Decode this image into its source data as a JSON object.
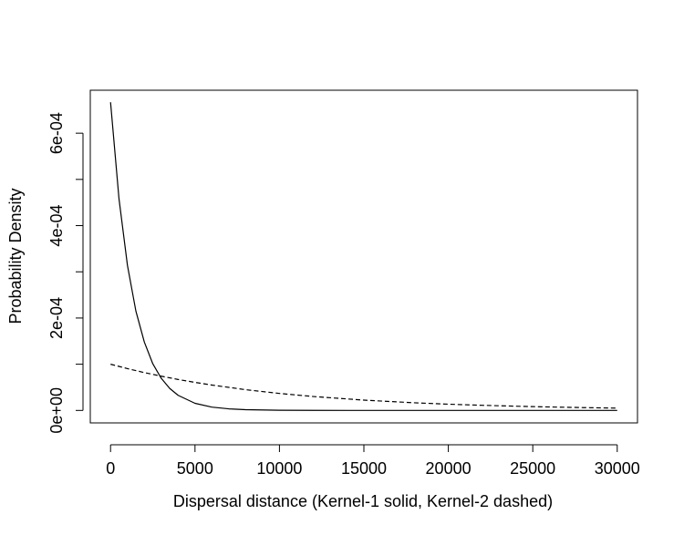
{
  "chart_data": {
    "type": "line",
    "title": "",
    "xlabel": "Dispersal distance (Kernel-1 solid, Kernel-2 dashed)",
    "ylabel": "Probability Density",
    "xlim": [
      -1200,
      31200
    ],
    "ylim": [
      -2.7e-05,
      0.000693
    ],
    "x_ticks": [
      0,
      5000,
      10000,
      15000,
      20000,
      25000,
      30000
    ],
    "x_tick_labels": [
      "0",
      "5000",
      "10000",
      "15000",
      "20000",
      "25000",
      "30000"
    ],
    "y_ticks": [
      0,
      0.0002,
      0.0004,
      0.0006
    ],
    "y_tick_labels": [
      "0e+00",
      "2e-04",
      "4e-04",
      "6e-04"
    ],
    "y_minor_ticks": [
      0.0001,
      0.0003,
      0.0005
    ],
    "grid": false,
    "series": [
      {
        "line_style": "solid",
        "x": [
          0,
          500,
          1000,
          1500,
          2000,
          2500,
          3000,
          3500,
          4000,
          5000,
          6000,
          7000,
          8000,
          10000,
          12000,
          15000,
          20000,
          25000,
          30000
        ],
        "y": [
          0.000667,
          0.000458,
          0.000314,
          0.000215,
          0.000148,
          0.000101,
          6.96e-05,
          4.77e-05,
          3.27e-05,
          1.54e-05,
          7.2e-06,
          3.4e-06,
          1.6e-06,
          3e-07,
          1e-07,
          0,
          0,
          0,
          0
        ]
      },
      {
        "line_style": "dashed",
        "x": [
          0,
          1000,
          2000,
          3000,
          4000,
          5000,
          6000,
          8000,
          10000,
          12000,
          15000,
          18000,
          20000,
          22000,
          25000,
          28000,
          30000
        ],
        "y": [
          0.0001,
          9.05e-05,
          8.19e-05,
          7.41e-05,
          6.7e-05,
          6.07e-05,
          5.49e-05,
          4.49e-05,
          3.68e-05,
          3.01e-05,
          2.23e-05,
          1.65e-05,
          1.35e-05,
          1.11e-05,
          8.2e-06,
          6.1e-06,
          5e-06
        ]
      }
    ]
  }
}
